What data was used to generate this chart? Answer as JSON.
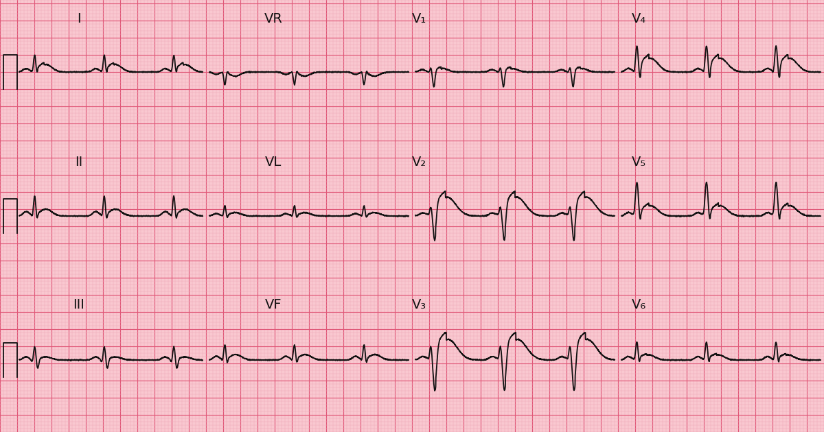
{
  "bg_color": "#f9c8d0",
  "grid_minor_color": "#f0a8b8",
  "grid_major_color": "#e05878",
  "line_color": "#111111",
  "label_color": "#111111",
  "label_fontsize": 14,
  "line_width": 1.3,
  "leads_row0": [
    "I",
    "VR",
    "V₁",
    "V₄"
  ],
  "leads_row1": [
    "II",
    "VL",
    "V₂",
    "V₅"
  ],
  "leads_row2": [
    "III",
    "VF",
    "V₃",
    "V₆"
  ]
}
